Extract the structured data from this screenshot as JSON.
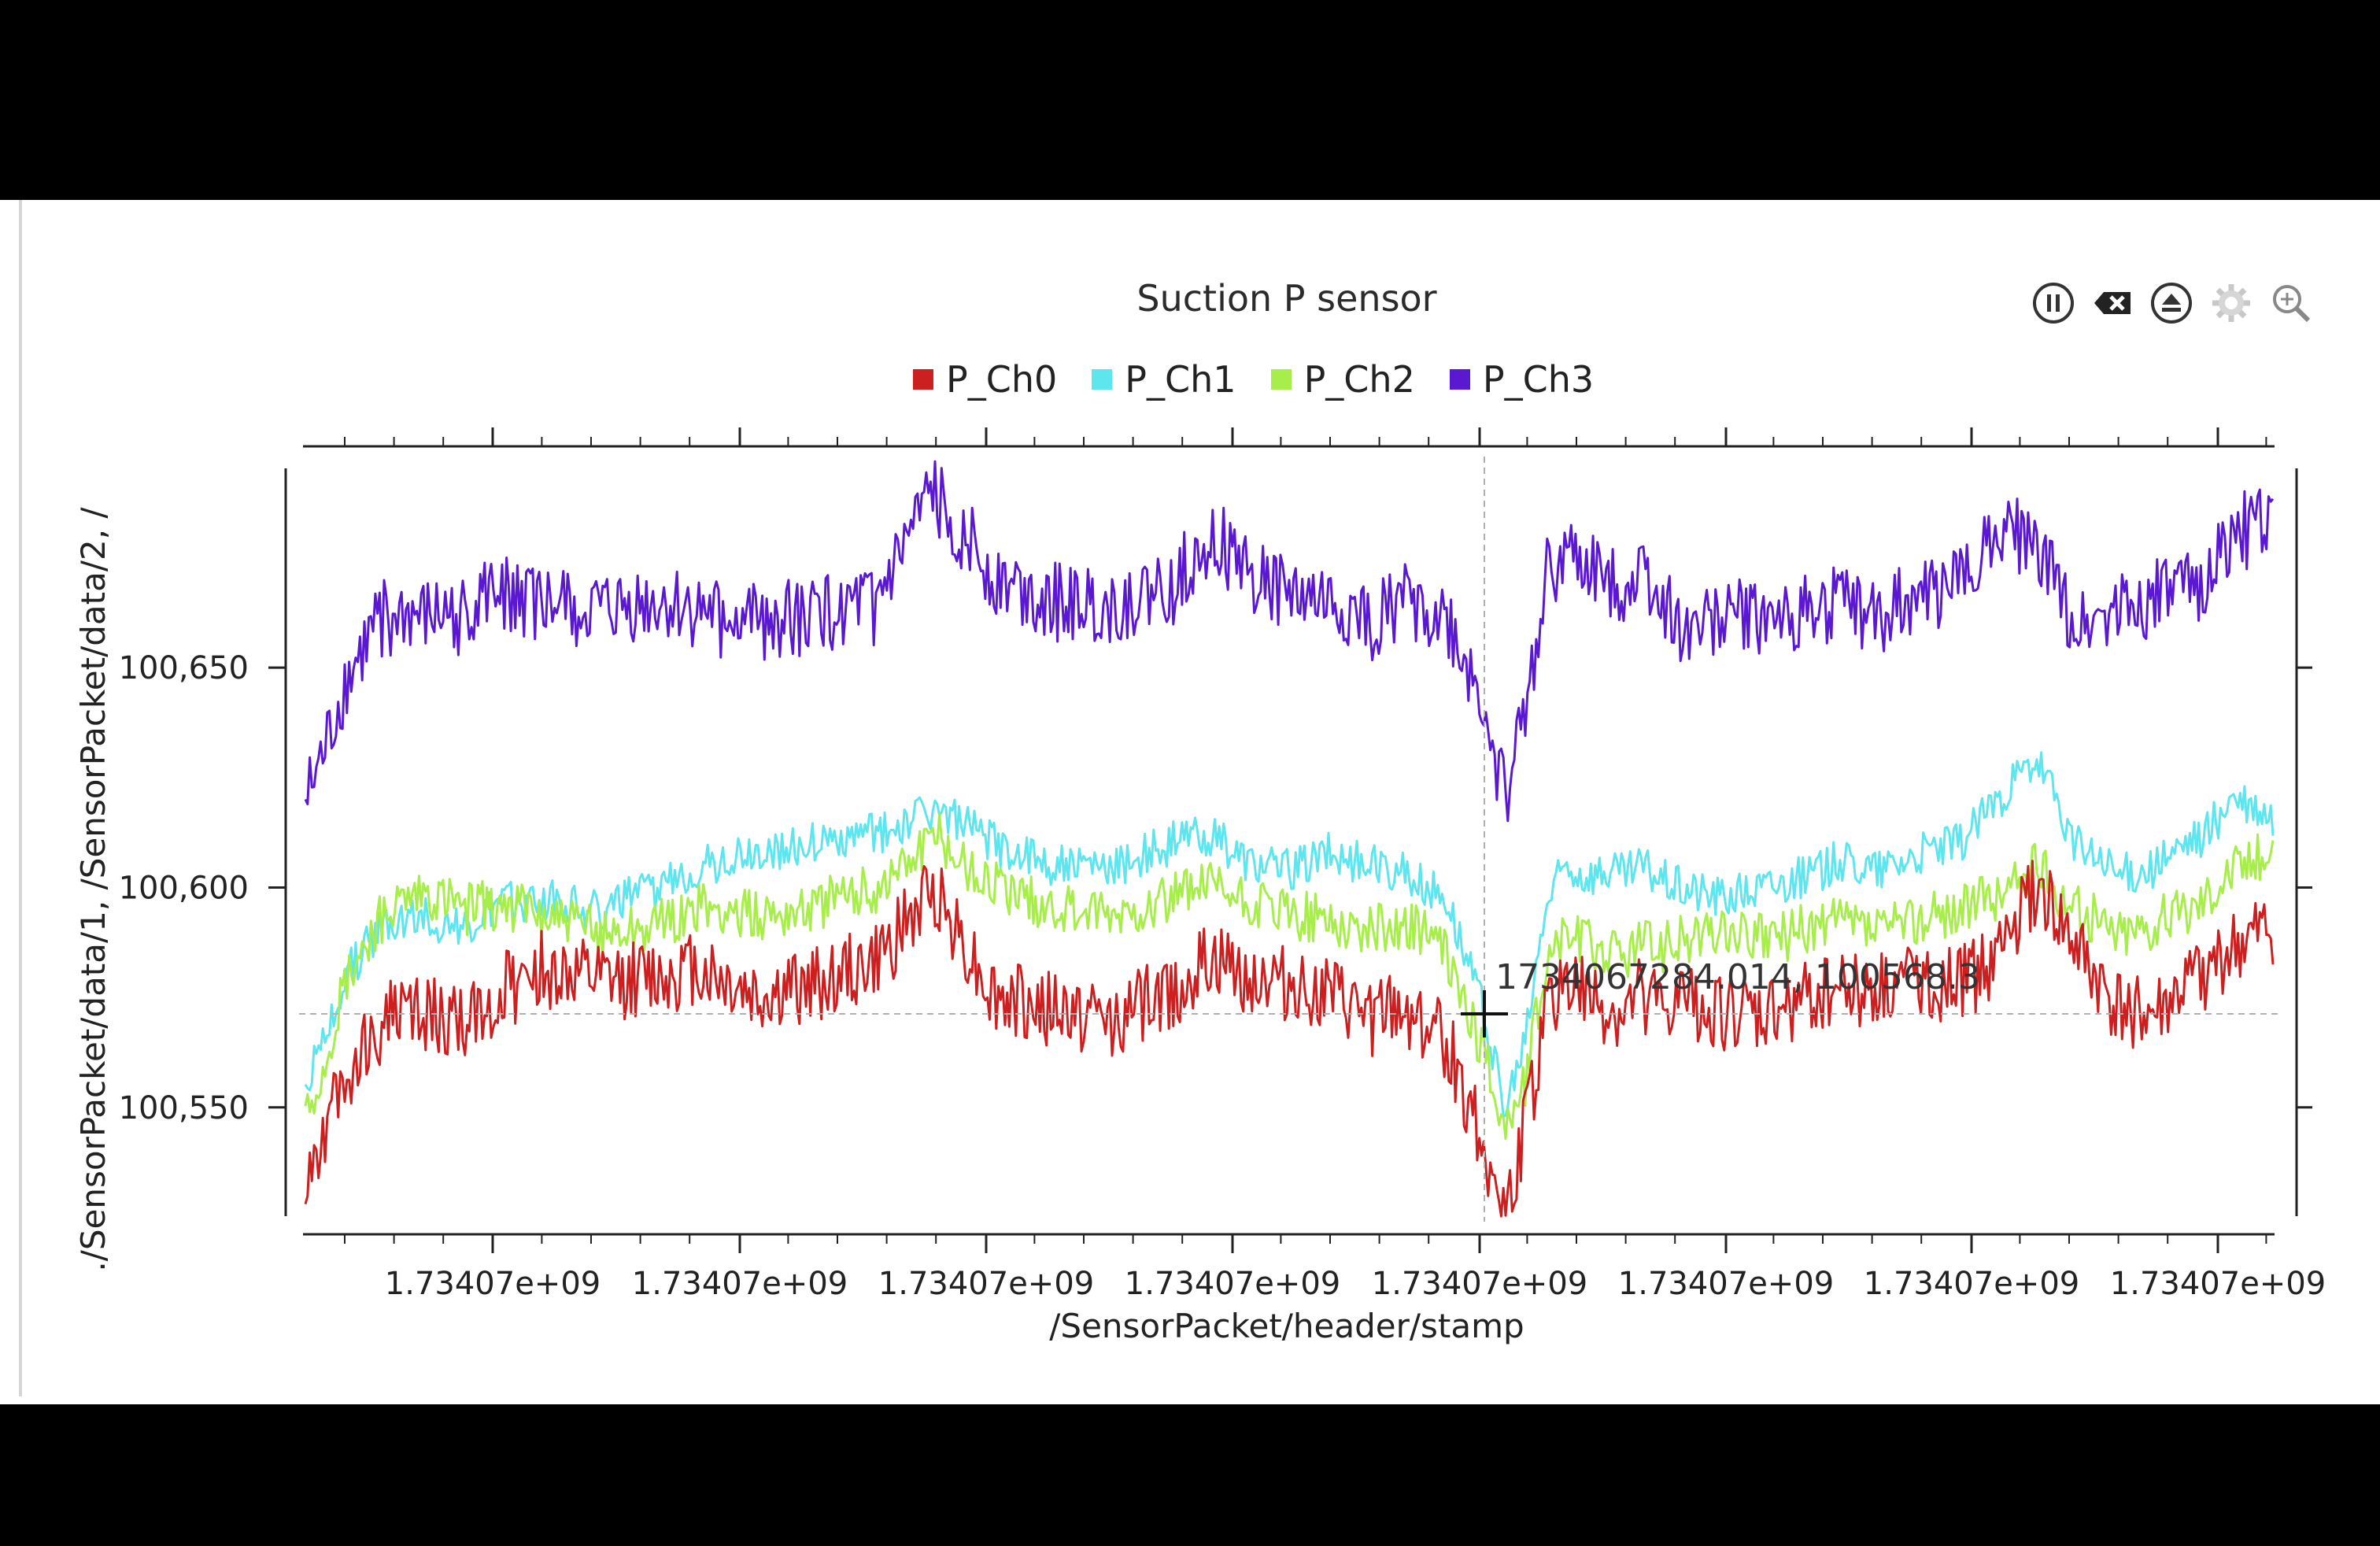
{
  "colors": {
    "P_Ch0": "#cc1f1f",
    "P_Ch1": "#5ee6ee",
    "P_Ch2": "#a8ee4a",
    "P_Ch3": "#5a19d0"
  },
  "toolbar": {
    "icons": [
      "pause-icon",
      "clear-icon",
      "eject-icon",
      "settings-gear-icon",
      "zoom-in-icon"
    ]
  },
  "tracker": {
    "readout": "1734067284.014, 100568.3"
  },
  "chart_data": {
    "type": "line",
    "title": "Suction P sensor",
    "xlabel": "/SensorPacket/header/stamp",
    "ylabel": "./SensorPacket/data/1, /SensorPacket/data/2, /",
    "x_tick_labels": [
      "1.73407e+09",
      "1.73407e+09",
      "1.73407e+09",
      "1.73407e+09",
      "1.73407e+09",
      "1.73407e+09",
      "1.73407e+09",
      "1.73407e+09"
    ],
    "y_tick_labels": [
      "100,650",
      "100,600",
      "100,550"
    ],
    "ylim": [
      100524,
      100698
    ],
    "xlim": [
      0,
      1
    ],
    "legend": "top-center",
    "grid": false,
    "series": [
      {
        "name": "P_Ch0",
        "x": [
          0,
          0.01,
          0.02,
          0.04,
          0.06,
          0.08,
          0.1,
          0.12,
          0.15,
          0.18,
          0.2,
          0.23,
          0.26,
          0.29,
          0.32,
          0.35,
          0.38,
          0.41,
          0.44,
          0.46,
          0.48,
          0.5,
          0.52,
          0.54,
          0.56,
          0.58,
          0.6,
          0.61,
          0.62,
          0.63,
          0.64,
          0.65,
          0.66,
          0.67,
          0.68,
          0.69,
          0.7,
          0.72,
          0.74,
          0.76,
          0.78,
          0.8,
          0.82,
          0.84,
          0.86,
          0.88,
          0.9,
          0.92,
          0.94,
          0.96,
          0.98,
          1.0
        ],
        "y": [
          100535,
          100545,
          100555,
          100570,
          100572,
          100568,
          100576,
          100582,
          100578,
          100580,
          100582,
          100575,
          100578,
          100583,
          100600,
          100575,
          100572,
          100570,
          100576,
          100583,
          100580,
          100578,
          100575,
          100570,
          100572,
          100565,
          100540,
          100525,
          100545,
          100570,
          100580,
          100575,
          100572,
          100570,
          100576,
          100571,
          100574,
          100572,
          100570,
          100575,
          100578,
          100576,
          100580,
          100577,
          100585,
          100600,
          100585,
          100572,
          100570,
          100578,
          100585,
          100590
        ]
      },
      {
        "name": "P_Ch1",
        "x": [
          0,
          0.01,
          0.02,
          0.04,
          0.06,
          0.08,
          0.1,
          0.12,
          0.15,
          0.18,
          0.2,
          0.23,
          0.26,
          0.29,
          0.32,
          0.35,
          0.38,
          0.41,
          0.44,
          0.46,
          0.48,
          0.5,
          0.52,
          0.54,
          0.56,
          0.58,
          0.6,
          0.61,
          0.62,
          0.63,
          0.64,
          0.65,
          0.66,
          0.67,
          0.68,
          0.69,
          0.7,
          0.72,
          0.74,
          0.76,
          0.78,
          0.8,
          0.82,
          0.84,
          0.86,
          0.88,
          0.9,
          0.92,
          0.94,
          0.96,
          0.98,
          1.0
        ],
        "y": [
          100555,
          100565,
          100580,
          100592,
          100594,
          100590,
          100596,
          100598,
          100595,
          100600,
          100605,
          100608,
          100610,
          100612,
          100618,
          100610,
          100605,
          100604,
          100610,
          100612,
          100606,
          100604,
          100608,
          100605,
          100603,
          100598,
          100570,
          100548,
          100565,
          100595,
          100605,
          100603,
          100604,
          100603,
          100605,
          100602,
          100600,
          100598,
          100600,
          100602,
          100606,
          100604,
          100608,
          100610,
          100620,
          100628,
          100610,
          100603,
          100605,
          100610,
          100620,
          100615
        ]
      },
      {
        "name": "P_Ch2",
        "x": [
          0,
          0.01,
          0.02,
          0.04,
          0.06,
          0.08,
          0.1,
          0.12,
          0.15,
          0.18,
          0.2,
          0.23,
          0.26,
          0.29,
          0.32,
          0.35,
          0.38,
          0.41,
          0.44,
          0.46,
          0.48,
          0.5,
          0.52,
          0.54,
          0.56,
          0.58,
          0.6,
          0.61,
          0.62,
          0.63,
          0.64,
          0.65,
          0.66,
          0.67,
          0.68,
          0.69,
          0.7,
          0.72,
          0.74,
          0.76,
          0.78,
          0.8,
          0.82,
          0.84,
          0.86,
          0.88,
          0.9,
          0.92,
          0.94,
          0.96,
          0.98,
          1.0
        ],
        "y": [
          100548,
          100560,
          100578,
          100594,
          100598,
          100595,
          100596,
          100594,
          100590,
          100592,
          100595,
          100594,
          100596,
          100600,
          100612,
          100600,
          100595,
          100593,
          100598,
          100600,
          100596,
          100594,
          100593,
          100590,
          100592,
          100585,
          100560,
          100545,
          100555,
          100582,
          100590,
          100588,
          100586,
          100585,
          100588,
          100586,
          100588,
          100590,
          100588,
          100590,
          100592,
          100590,
          100593,
          100595,
          100598,
          100605,
          100595,
          100590,
          100592,
          100596,
          100605,
          100608
        ]
      },
      {
        "name": "P_Ch3",
        "x": [
          0,
          0.01,
          0.02,
          0.04,
          0.06,
          0.08,
          0.1,
          0.12,
          0.15,
          0.18,
          0.2,
          0.23,
          0.26,
          0.29,
          0.32,
          0.35,
          0.38,
          0.41,
          0.44,
          0.46,
          0.48,
          0.5,
          0.52,
          0.54,
          0.56,
          0.58,
          0.6,
          0.61,
          0.62,
          0.63,
          0.64,
          0.65,
          0.66,
          0.67,
          0.68,
          0.69,
          0.7,
          0.72,
          0.74,
          0.76,
          0.78,
          0.8,
          0.82,
          0.84,
          0.86,
          0.88,
          0.9,
          0.92,
          0.94,
          0.96,
          0.98,
          1.0
        ],
        "y": [
          100618,
          100630,
          100645,
          100662,
          100660,
          100662,
          100668,
          100664,
          100662,
          100664,
          100662,
          100660,
          100662,
          100664,
          100690,
          100670,
          100665,
          100663,
          100668,
          100680,
          100672,
          100666,
          100664,
          100660,
          100665,
          100660,
          100640,
          100620,
          100640,
          100670,
          100675,
          100672,
          100670,
          100668,
          100672,
          100664,
          100660,
          100662,
          100660,
          100663,
          100664,
          100662,
          100666,
          100668,
          100684,
          100676,
          100660,
          100664,
          100666,
          100668,
          100680,
          100684
        ]
      }
    ]
  }
}
